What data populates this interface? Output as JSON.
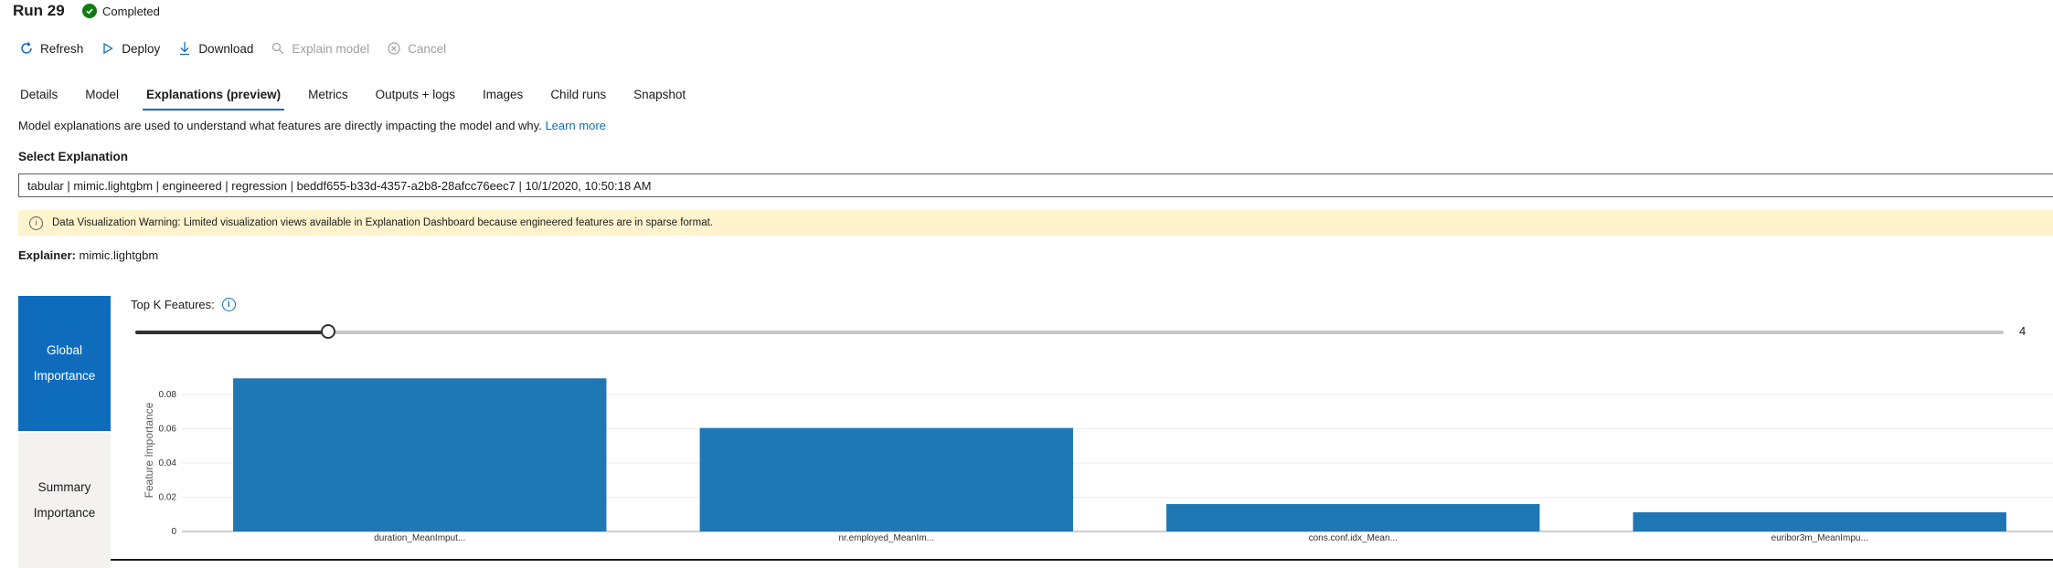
{
  "header": {
    "title": "Run 29",
    "status": "Completed"
  },
  "toolbar": {
    "refresh": "Refresh",
    "deploy": "Deploy",
    "download": "Download",
    "explain_model": "Explain model",
    "cancel": "Cancel"
  },
  "tabs": [
    "Details",
    "Model",
    "Explanations (preview)",
    "Metrics",
    "Outputs + logs",
    "Images",
    "Child runs",
    "Snapshot"
  ],
  "active_tab": "Explanations (preview)",
  "description": {
    "text": "Model explanations are used to understand what features are directly impacting the model and why.",
    "link": "Learn more"
  },
  "select": {
    "label": "Select Explanation",
    "value": "tabular | mimic.lightgbm | engineered | regression | beddf655-b33d-4357-a2b8-28afcc76eec7 | 10/1/2020, 10:50:18 AM"
  },
  "warning": "Data Visualization Warning: Limited visualization views available in Explanation Dashboard because engineered features are in sparse format.",
  "explainer": {
    "label": "Explainer:",
    "value": "mimic.lightgbm"
  },
  "side_nav": {
    "global": [
      "Global",
      "Importance"
    ],
    "summary": [
      "Summary",
      "Importance"
    ]
  },
  "topk": {
    "label": "Top K Features:",
    "value": "4",
    "fraction": 0.103
  },
  "colors": {
    "accent": "#0f6cbd",
    "bar": "#1f77b4",
    "warning_bg": "#fff4ce",
    "success": "#107c10"
  },
  "chart_data": {
    "type": "bar",
    "categories": [
      "duration_MeanImput...",
      "nr.employed_MeanIm...",
      "cons.conf.idx_Mean...",
      "euribor3m_MeanImpu..."
    ],
    "values": [
      0.0895,
      0.0605,
      0.016,
      0.0112
    ],
    "ylabel": "Feature Importance",
    "yticks": [
      "0",
      "0.02",
      "0.04",
      "0.06",
      "0.08"
    ],
    "ylim": [
      0,
      0.095
    ],
    "grid": true
  }
}
